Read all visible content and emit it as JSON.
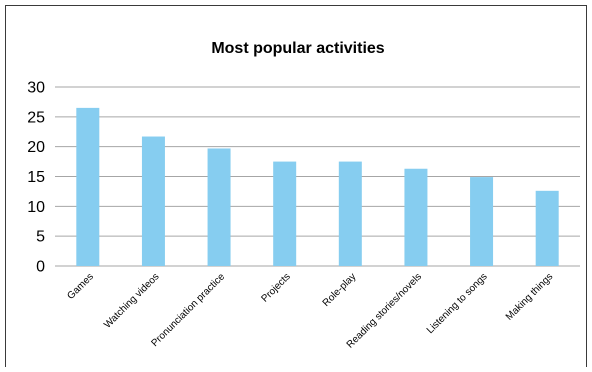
{
  "colors": {
    "bar": "#86cdf0",
    "grid": "#a6a6a6",
    "text": "#000000"
  },
  "chart_data": {
    "type": "bar",
    "title": "Most popular activities",
    "xlabel": "",
    "ylabel": "",
    "categories": [
      "Games",
      "Watching videos",
      "Pronunciation practice",
      "Projects",
      "Role-play",
      "Reading stories/novels",
      "Listening to songs",
      "Making things"
    ],
    "values": [
      26.5,
      21.7,
      19.7,
      17.5,
      17.5,
      16.3,
      14.9,
      12.6
    ],
    "ylim": [
      0,
      30
    ],
    "yticks": [
      "0",
      "5",
      "10",
      "15",
      "20",
      "25",
      "30"
    ],
    "grid": true,
    "legend": "none"
  }
}
